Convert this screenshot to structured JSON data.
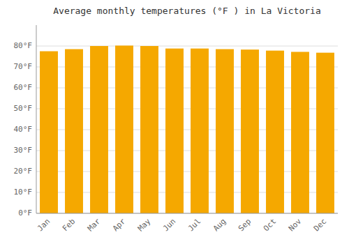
{
  "chart_data": {
    "type": "bar",
    "title": "Average monthly temperatures (°F ) in La Victoria",
    "categories": [
      "Jan",
      "Feb",
      "Mar",
      "Apr",
      "May",
      "Jun",
      "Jul",
      "Aug",
      "Sep",
      "Oct",
      "Nov",
      "Dec"
    ],
    "values": [
      77.5,
      78.5,
      80.0,
      80.2,
      80.0,
      78.8,
      78.8,
      78.5,
      78.3,
      77.8,
      77.2,
      76.8
    ],
    "color": "#F5A800",
    "ylim": [
      0,
      90
    ],
    "yticks": [
      {
        "value": 0,
        "label": "0°F"
      },
      {
        "value": 10,
        "label": "10°F"
      },
      {
        "value": 20,
        "label": "20°F"
      },
      {
        "value": 30,
        "label": "30°F"
      },
      {
        "value": 40,
        "label": "40°F"
      },
      {
        "value": 50,
        "label": "50°F"
      },
      {
        "value": 60,
        "label": "60°F"
      },
      {
        "value": 70,
        "label": "70°F"
      },
      {
        "value": 80,
        "label": "80°F"
      }
    ],
    "grid": true
  }
}
